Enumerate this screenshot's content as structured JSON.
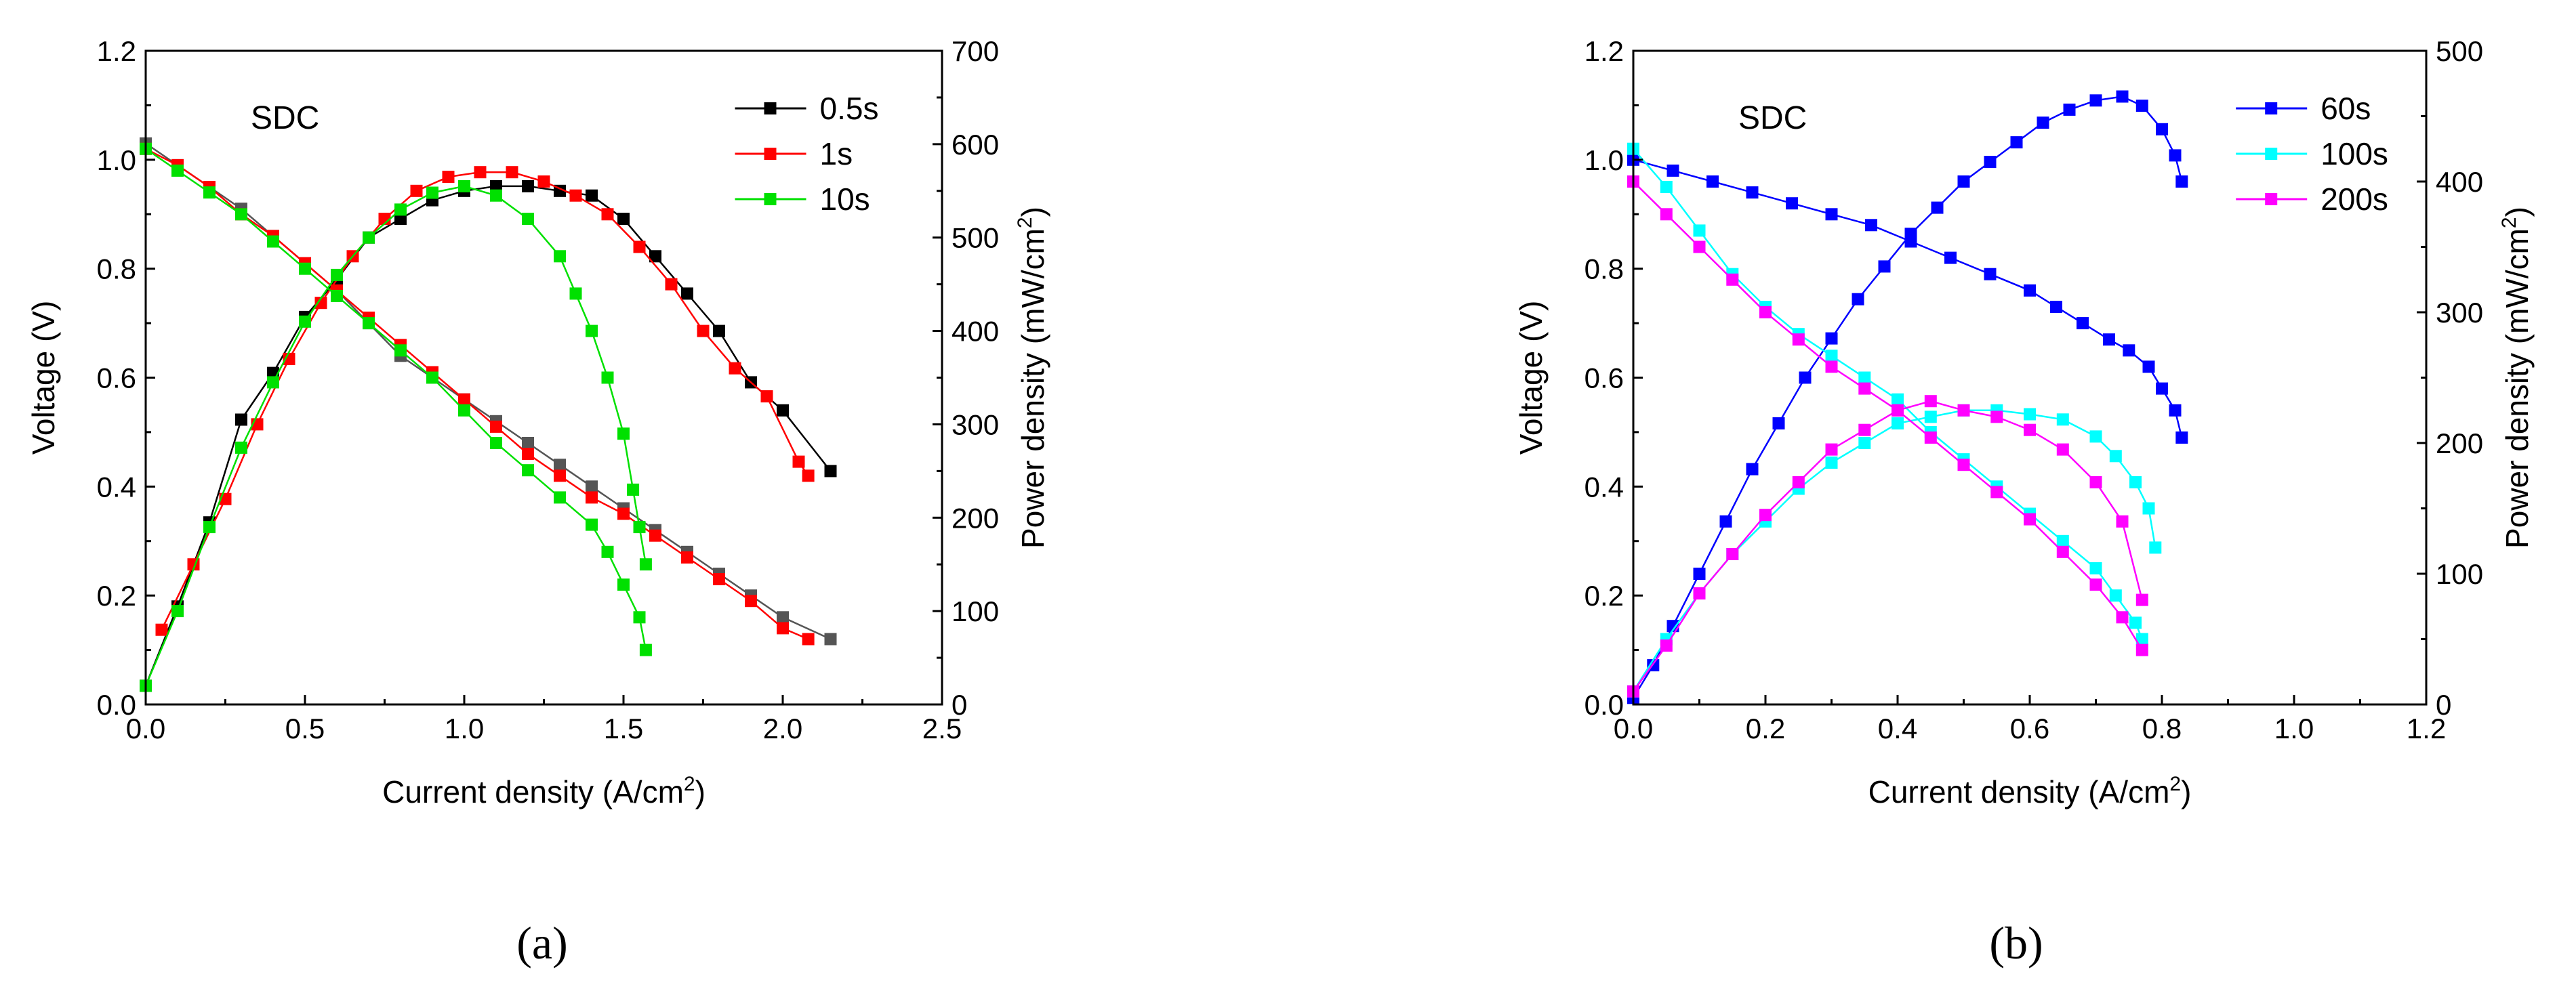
{
  "captions": [
    "(a)",
    "(b)"
  ],
  "chart_data": [
    {
      "type": "line",
      "panel": "a",
      "annotation": "SDC",
      "xlabel": "Current density (A/cm",
      "xlabel_sup": "2",
      "xlabel_end": ")",
      "ylabel": "Voltage (V)",
      "y2label": "Power density (mW/cm",
      "y2label_sup": "2",
      "y2label_end": ")",
      "xlim": [
        0,
        2.5
      ],
      "ylim": [
        0,
        1.2
      ],
      "y2lim": [
        0,
        700
      ],
      "xticks": [
        0.0,
        0.5,
        1.0,
        1.5,
        2.0,
        2.5
      ],
      "xtick_labels": [
        "0.0",
        "0.5",
        "1.0",
        "1.5",
        "2.0",
        "2.5"
      ],
      "yticks": [
        0.0,
        0.2,
        0.4,
        0.6,
        0.8,
        1.0,
        1.2
      ],
      "ytick_labels": [
        "0.0",
        "0.2",
        "0.4",
        "0.6",
        "0.8",
        "1.0",
        "1.2"
      ],
      "y2ticks": [
        0,
        100,
        200,
        300,
        400,
        500,
        600,
        700
      ],
      "y2tick_labels": [
        "0",
        "100",
        "200",
        "300",
        "400",
        "500",
        "600",
        "700"
      ],
      "legend_position": "top-right",
      "series": [
        {
          "name": "0.5s",
          "color": "#000000",
          "voltage_color": "#555555",
          "voltage": {
            "x": [
              0.0,
              0.1,
              0.2,
              0.3,
              0.4,
              0.5,
              0.6,
              0.7,
              0.8,
              0.9,
              1.0,
              1.1,
              1.2,
              1.3,
              1.4,
              1.5,
              1.6,
              1.7,
              1.8,
              1.9,
              2.0,
              2.15
            ],
            "y": [
              1.03,
              0.99,
              0.95,
              0.91,
              0.86,
              0.81,
              0.76,
              0.7,
              0.64,
              0.6,
              0.56,
              0.52,
              0.48,
              0.44,
              0.4,
              0.36,
              0.32,
              0.28,
              0.24,
              0.2,
              0.16,
              0.12
            ]
          },
          "power": {
            "x": [
              0.0,
              0.1,
              0.2,
              0.3,
              0.4,
              0.5,
              0.6,
              0.7,
              0.8,
              0.9,
              1.0,
              1.1,
              1.2,
              1.3,
              1.4,
              1.5,
              1.6,
              1.7,
              1.8,
              1.9,
              2.0,
              2.15
            ],
            "y": [
              20,
              105,
              195,
              305,
              355,
              415,
              455,
              500,
              520,
              540,
              550,
              555,
              555,
              550,
              545,
              520,
              480,
              440,
              400,
              345,
              315,
              250
            ]
          }
        },
        {
          "name": "1s",
          "color": "#ff0000",
          "voltage_color": "#ff0000",
          "voltage": {
            "x": [
              0.0,
              0.1,
              0.2,
              0.3,
              0.4,
              0.5,
              0.6,
              0.7,
              0.8,
              0.9,
              1.0,
              1.1,
              1.2,
              1.3,
              1.4,
              1.5,
              1.6,
              1.7,
              1.8,
              1.9,
              2.0,
              2.08
            ],
            "y": [
              1.02,
              0.99,
              0.95,
              0.9,
              0.86,
              0.81,
              0.76,
              0.71,
              0.66,
              0.61,
              0.56,
              0.51,
              0.46,
              0.42,
              0.38,
              0.35,
              0.31,
              0.27,
              0.23,
              0.19,
              0.14,
              0.12
            ]
          },
          "power": {
            "x": [
              0.05,
              0.15,
              0.25,
              0.35,
              0.45,
              0.55,
              0.65,
              0.75,
              0.85,
              0.95,
              1.05,
              1.15,
              1.25,
              1.35,
              1.45,
              1.55,
              1.65,
              1.75,
              1.85,
              1.95,
              2.05,
              2.08
            ],
            "y": [
              80,
              150,
              220,
              300,
              370,
              430,
              480,
              520,
              550,
              565,
              570,
              570,
              560,
              545,
              525,
              490,
              450,
              400,
              360,
              330,
              260,
              245
            ]
          }
        },
        {
          "name": "10s",
          "color": "#00e000",
          "voltage_color": "#00e000",
          "voltage": {
            "x": [
              0.0,
              0.1,
              0.2,
              0.3,
              0.4,
              0.5,
              0.6,
              0.7,
              0.8,
              0.9,
              1.0,
              1.1,
              1.2,
              1.3,
              1.4,
              1.45,
              1.5,
              1.55,
              1.57
            ],
            "y": [
              1.02,
              0.98,
              0.94,
              0.9,
              0.85,
              0.8,
              0.75,
              0.7,
              0.65,
              0.6,
              0.54,
              0.48,
              0.43,
              0.38,
              0.33,
              0.28,
              0.22,
              0.16,
              0.1
            ]
          },
          "power": {
            "x": [
              0.0,
              0.1,
              0.2,
              0.3,
              0.4,
              0.5,
              0.6,
              0.7,
              0.8,
              0.9,
              1.0,
              1.1,
              1.2,
              1.3,
              1.35,
              1.4,
              1.45,
              1.5,
              1.53,
              1.55,
              1.57
            ],
            "y": [
              20,
              100,
              190,
              275,
              345,
              410,
              460,
              500,
              530,
              548,
              555,
              545,
              520,
              480,
              440,
              400,
              350,
              290,
              230,
              190,
              150
            ]
          }
        }
      ]
    },
    {
      "type": "line",
      "panel": "b",
      "annotation": "SDC",
      "xlabel": "Current density (A/cm",
      "xlabel_sup": "2",
      "xlabel_end": ")",
      "ylabel": "Voltage (V)",
      "y2label": "Power density (mW/cm",
      "y2label_sup": "2",
      "y2label_end": ")",
      "xlim": [
        0,
        1.2
      ],
      "ylim": [
        0,
        1.2
      ],
      "y2lim": [
        0,
        500
      ],
      "xticks": [
        0.0,
        0.2,
        0.4,
        0.6,
        0.8,
        1.0,
        1.2
      ],
      "xtick_labels": [
        "0.0",
        "0.2",
        "0.4",
        "0.6",
        "0.8",
        "1.0",
        "1.2"
      ],
      "yticks": [
        0.0,
        0.2,
        0.4,
        0.6,
        0.8,
        1.0,
        1.2
      ],
      "ytick_labels": [
        "0.0",
        "0.2",
        "0.4",
        "0.6",
        "0.8",
        "1.0",
        "1.2"
      ],
      "y2ticks": [
        0,
        100,
        200,
        300,
        400,
        500
      ],
      "y2tick_labels": [
        "0",
        "100",
        "200",
        "300",
        "400",
        "500"
      ],
      "legend_position": "top-right",
      "series": [
        {
          "name": "60s",
          "color": "#0000ff",
          "voltage_color": "#0000ff",
          "voltage": {
            "x": [
              0.0,
              0.06,
              0.12,
              0.18,
              0.24,
              0.3,
              0.36,
              0.42,
              0.48,
              0.54,
              0.6,
              0.64,
              0.68,
              0.72,
              0.75,
              0.78,
              0.8,
              0.82,
              0.83
            ],
            "y": [
              1.0,
              0.98,
              0.96,
              0.94,
              0.92,
              0.9,
              0.88,
              0.85,
              0.82,
              0.79,
              0.76,
              0.73,
              0.7,
              0.67,
              0.65,
              0.62,
              0.58,
              0.54,
              0.49
            ]
          },
          "power": {
            "x": [
              0.0,
              0.03,
              0.06,
              0.1,
              0.14,
              0.18,
              0.22,
              0.26,
              0.3,
              0.34,
              0.38,
              0.42,
              0.46,
              0.5,
              0.54,
              0.58,
              0.62,
              0.66,
              0.7,
              0.74,
              0.77,
              0.8,
              0.82,
              0.83
            ],
            "y": [
              5,
              30,
              60,
              100,
              140,
              180,
              215,
              250,
              280,
              310,
              335,
              360,
              380,
              400,
              415,
              430,
              445,
              455,
              462,
              465,
              458,
              440,
              420,
              400
            ]
          }
        },
        {
          "name": "100s",
          "color": "#00ffff",
          "voltage_color": "#00ffff",
          "voltage": {
            "x": [
              0.0,
              0.05,
              0.1,
              0.15,
              0.2,
              0.25,
              0.3,
              0.35,
              0.4,
              0.45,
              0.5,
              0.55,
              0.6,
              0.65,
              0.7,
              0.73,
              0.76,
              0.77
            ],
            "y": [
              1.02,
              0.95,
              0.87,
              0.79,
              0.73,
              0.68,
              0.64,
              0.6,
              0.56,
              0.5,
              0.45,
              0.4,
              0.35,
              0.3,
              0.25,
              0.2,
              0.15,
              0.12
            ]
          },
          "power": {
            "x": [
              0.0,
              0.05,
              0.1,
              0.15,
              0.2,
              0.25,
              0.3,
              0.35,
              0.4,
              0.45,
              0.5,
              0.55,
              0.6,
              0.65,
              0.7,
              0.73,
              0.76,
              0.78,
              0.79
            ],
            "y": [
              10,
              50,
              85,
              115,
              140,
              165,
              185,
              200,
              215,
              220,
              225,
              225,
              222,
              218,
              205,
              190,
              170,
              150,
              120
            ]
          }
        },
        {
          "name": "200s",
          "color": "#ff00ff",
          "voltage_color": "#ff00ff",
          "voltage": {
            "x": [
              0.0,
              0.05,
              0.1,
              0.15,
              0.2,
              0.25,
              0.3,
              0.35,
              0.4,
              0.45,
              0.5,
              0.55,
              0.6,
              0.65,
              0.7,
              0.74,
              0.77
            ],
            "y": [
              0.96,
              0.9,
              0.84,
              0.78,
              0.72,
              0.67,
              0.62,
              0.58,
              0.54,
              0.49,
              0.44,
              0.39,
              0.34,
              0.28,
              0.22,
              0.16,
              0.1
            ]
          },
          "power": {
            "x": [
              0.0,
              0.05,
              0.1,
              0.15,
              0.2,
              0.25,
              0.3,
              0.35,
              0.4,
              0.45,
              0.5,
              0.55,
              0.6,
              0.65,
              0.7,
              0.74,
              0.77
            ],
            "y": [
              10,
              45,
              85,
              115,
              145,
              170,
              195,
              210,
              225,
              232,
              225,
              220,
              210,
              195,
              170,
              140,
              80
            ]
          }
        }
      ]
    }
  ]
}
